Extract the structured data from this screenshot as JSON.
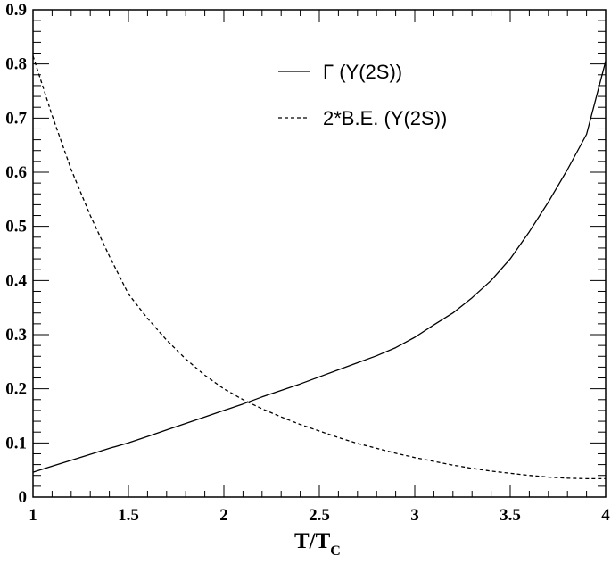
{
  "chart_data": {
    "type": "line",
    "title": "",
    "xlabel": "T/T",
    "xlabel_sub": "C",
    "ylabel": "",
    "xlim": [
      1,
      4
    ],
    "ylim": [
      0,
      0.9
    ],
    "x_ticks": [
      1,
      1.5,
      2,
      2.5,
      3,
      3.5,
      4
    ],
    "x_tick_labels": [
      "1",
      "1.5",
      "2",
      "2.5",
      "3",
      "3.5",
      "4"
    ],
    "y_ticks": [
      0,
      0.1,
      0.2,
      0.3,
      0.4,
      0.5,
      0.6,
      0.7,
      0.8,
      0.9
    ],
    "y_tick_labels": [
      "0",
      "0.1",
      "0.2",
      "0.3",
      "0.4",
      "0.5",
      "0.6",
      "0.7",
      "0.8",
      "0.9"
    ],
    "grid": false,
    "legend_position": "top-right",
    "series": [
      {
        "name": "Γ (Υ(2S))",
        "style": "solid",
        "color": "#000000",
        "x": [
          1.0,
          1.1,
          1.2,
          1.3,
          1.4,
          1.5,
          1.6,
          1.7,
          1.8,
          1.9,
          2.0,
          2.1,
          2.2,
          2.3,
          2.4,
          2.5,
          2.6,
          2.7,
          2.8,
          2.9,
          3.0,
          3.1,
          3.2,
          3.3,
          3.4,
          3.5,
          3.6,
          3.7,
          3.8,
          3.9,
          4.0
        ],
        "y": [
          0.046,
          0.057,
          0.068,
          0.079,
          0.09,
          0.1,
          0.112,
          0.124,
          0.136,
          0.148,
          0.16,
          0.172,
          0.185,
          0.197,
          0.209,
          0.222,
          0.235,
          0.248,
          0.261,
          0.276,
          0.295,
          0.318,
          0.34,
          0.368,
          0.4,
          0.44,
          0.49,
          0.545,
          0.605,
          0.67,
          0.805
        ]
      },
      {
        "name": "2*B.E. (Υ(2S))",
        "style": "dashed",
        "color": "#000000",
        "x": [
          1.0,
          1.1,
          1.2,
          1.3,
          1.4,
          1.5,
          1.6,
          1.7,
          1.8,
          1.9,
          2.0,
          2.1,
          2.2,
          2.3,
          2.4,
          2.5,
          2.6,
          2.7,
          2.8,
          2.9,
          3.0,
          3.1,
          3.2,
          3.3,
          3.4,
          3.5,
          3.6,
          3.7,
          3.8,
          3.9,
          4.0
        ],
        "y": [
          0.815,
          0.705,
          0.605,
          0.52,
          0.445,
          0.375,
          0.33,
          0.29,
          0.255,
          0.225,
          0.2,
          0.18,
          0.163,
          0.148,
          0.134,
          0.122,
          0.11,
          0.099,
          0.09,
          0.081,
          0.073,
          0.066,
          0.059,
          0.053,
          0.048,
          0.044,
          0.04,
          0.037,
          0.035,
          0.034,
          0.034
        ]
      }
    ]
  }
}
